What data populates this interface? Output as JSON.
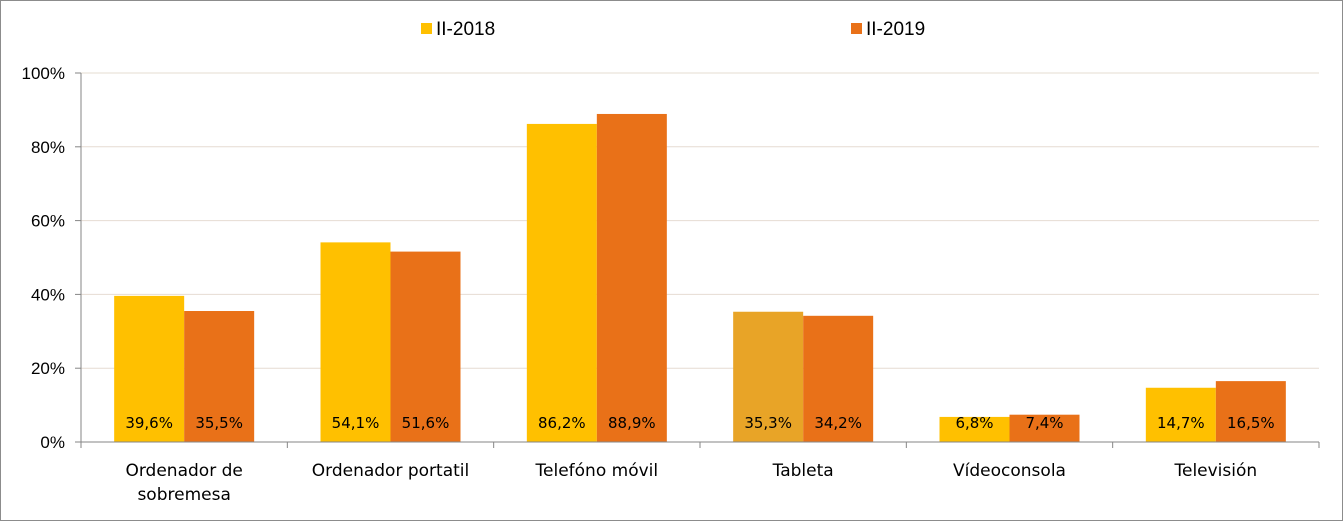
{
  "chart_data": {
    "type": "bar",
    "categories": [
      [
        "Ordenador de",
        "sobremesa"
      ],
      [
        "Ordenador portatil"
      ],
      [
        "Telefóno móvil"
      ],
      [
        "Tableta"
      ],
      [
        "Vídeoconsola"
      ],
      [
        "Televisión"
      ]
    ],
    "series": [
      {
        "name": "II-2018",
        "color": "#FFC000",
        "values": [
          39.6,
          54.1,
          86.2,
          35.3,
          6.8,
          14.7
        ],
        "labels": [
          "39,6%",
          "54,1%",
          "86,2%",
          "35,3%",
          "6,8%",
          "14,7%"
        ],
        "point_colors": [
          null,
          null,
          null,
          "#E8A427",
          null,
          null
        ]
      },
      {
        "name": "II-2019",
        "color": "#E97118",
        "values": [
          35.5,
          51.6,
          88.9,
          34.2,
          7.4,
          16.5
        ],
        "labels": [
          "35,5%",
          "51,6%",
          "88,9%",
          "34,2%",
          "7,4%",
          "16,5%"
        ],
        "point_colors": [
          null,
          null,
          null,
          null,
          null,
          null
        ]
      }
    ],
    "ylim": [
      0,
      100
    ],
    "yticks": [
      0,
      20,
      40,
      60,
      80,
      100
    ],
    "ytick_labels": [
      "0%",
      "20%",
      "40%",
      "60%",
      "80%",
      "100%"
    ],
    "grid": true,
    "legend_position": "top-center",
    "title": "",
    "xlabel": "",
    "ylabel": ""
  }
}
